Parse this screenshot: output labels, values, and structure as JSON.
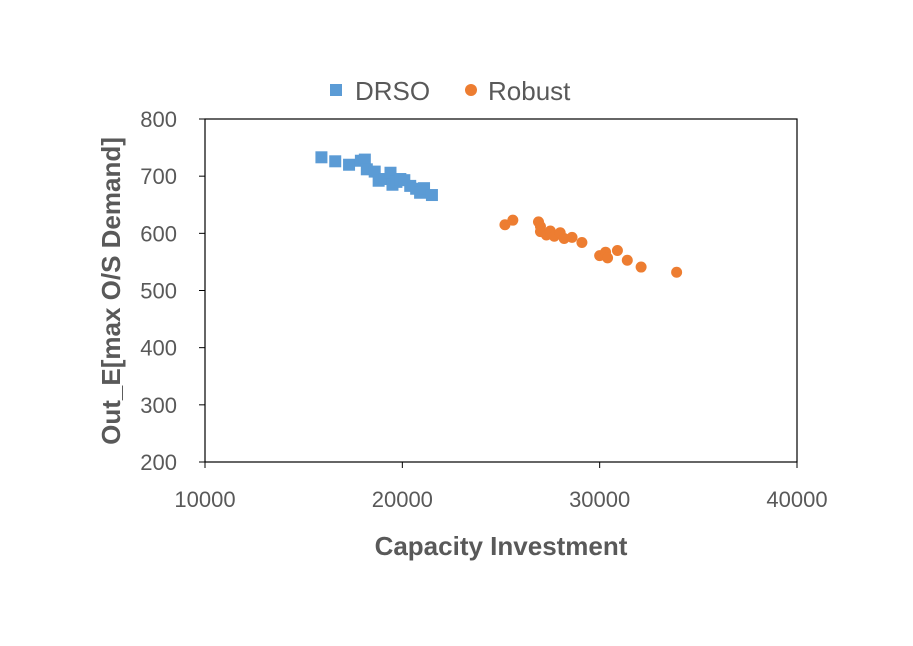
{
  "chart_data": {
    "type": "scatter",
    "title": "",
    "xlabel": "Capacity Investment",
    "ylabel": "Out_E[max O/S Demand]",
    "xlim": [
      10000,
      40000
    ],
    "ylim": [
      200,
      800
    ],
    "xticks": [
      10000,
      20000,
      30000,
      40000
    ],
    "yticks": [
      200,
      300,
      400,
      500,
      600,
      700,
      800
    ],
    "grid": false,
    "legend_position": "top",
    "series": [
      {
        "name": "DRSO",
        "marker": "square",
        "color": "#5B9BD5",
        "points": [
          [
            15900,
            733
          ],
          [
            16600,
            726
          ],
          [
            17300,
            720
          ],
          [
            17900,
            727
          ],
          [
            18100,
            729
          ],
          [
            18200,
            712
          ],
          [
            18600,
            708
          ],
          [
            18800,
            692
          ],
          [
            19100,
            695
          ],
          [
            19400,
            706
          ],
          [
            19500,
            685
          ],
          [
            19700,
            690
          ],
          [
            19900,
            695
          ],
          [
            20100,
            693
          ],
          [
            20400,
            683
          ],
          [
            20700,
            678
          ],
          [
            20900,
            671
          ],
          [
            21100,
            679
          ],
          [
            21500,
            667
          ]
        ]
      },
      {
        "name": "Robust",
        "marker": "circle",
        "color": "#ED7D31",
        "points": [
          [
            25200,
            615
          ],
          [
            25600,
            623
          ],
          [
            26900,
            620
          ],
          [
            27000,
            612
          ],
          [
            27000,
            603
          ],
          [
            27300,
            597
          ],
          [
            27500,
            604
          ],
          [
            27700,
            595
          ],
          [
            28000,
            601
          ],
          [
            28200,
            591
          ],
          [
            28600,
            593
          ],
          [
            29100,
            584
          ],
          [
            30000,
            561
          ],
          [
            30300,
            567
          ],
          [
            30400,
            557
          ],
          [
            30900,
            570
          ],
          [
            31400,
            553
          ],
          [
            32100,
            541
          ],
          [
            33900,
            532
          ]
        ]
      }
    ]
  }
}
